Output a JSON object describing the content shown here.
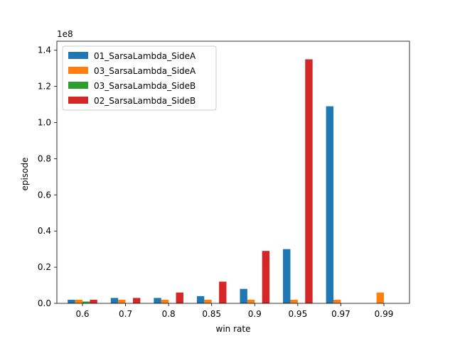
{
  "chart_data": {
    "type": "bar",
    "title": "",
    "xlabel": "win rate",
    "ylabel": "episode",
    "y_offset_label": "1e8",
    "ylim": [
      0,
      1.45
    ],
    "y_scale_multiplier": 100000000,
    "yticks": [
      "0.0",
      "0.2",
      "0.4",
      "0.6",
      "0.8",
      "1.0",
      "1.2",
      "1.4"
    ],
    "categories": [
      "0.6",
      "0.7",
      "0.8",
      "0.85",
      "0.9",
      "0.95",
      "0.97",
      "0.99"
    ],
    "legend_position": "upper-left",
    "grid": false,
    "series": [
      {
        "name": "01_SarsaLambda_SideA",
        "color": "#1f77b4",
        "values": [
          0.02,
          0.03,
          0.03,
          0.04,
          0.08,
          0.3,
          1.09,
          null
        ]
      },
      {
        "name": "03_SarsaLambda_SideA",
        "color": "#ff7f0e",
        "values": [
          0.02,
          0.02,
          0.02,
          0.02,
          0.02,
          0.02,
          0.02,
          0.06
        ]
      },
      {
        "name": "03_SarsaLambda_SideB",
        "color": "#2ca02c",
        "values": [
          0.01,
          null,
          null,
          null,
          null,
          null,
          null,
          null
        ]
      },
      {
        "name": "02_SarsaLambda_SideB",
        "color": "#d62728",
        "values": [
          0.02,
          0.03,
          0.06,
          0.12,
          0.29,
          1.35,
          null,
          null
        ]
      }
    ]
  }
}
